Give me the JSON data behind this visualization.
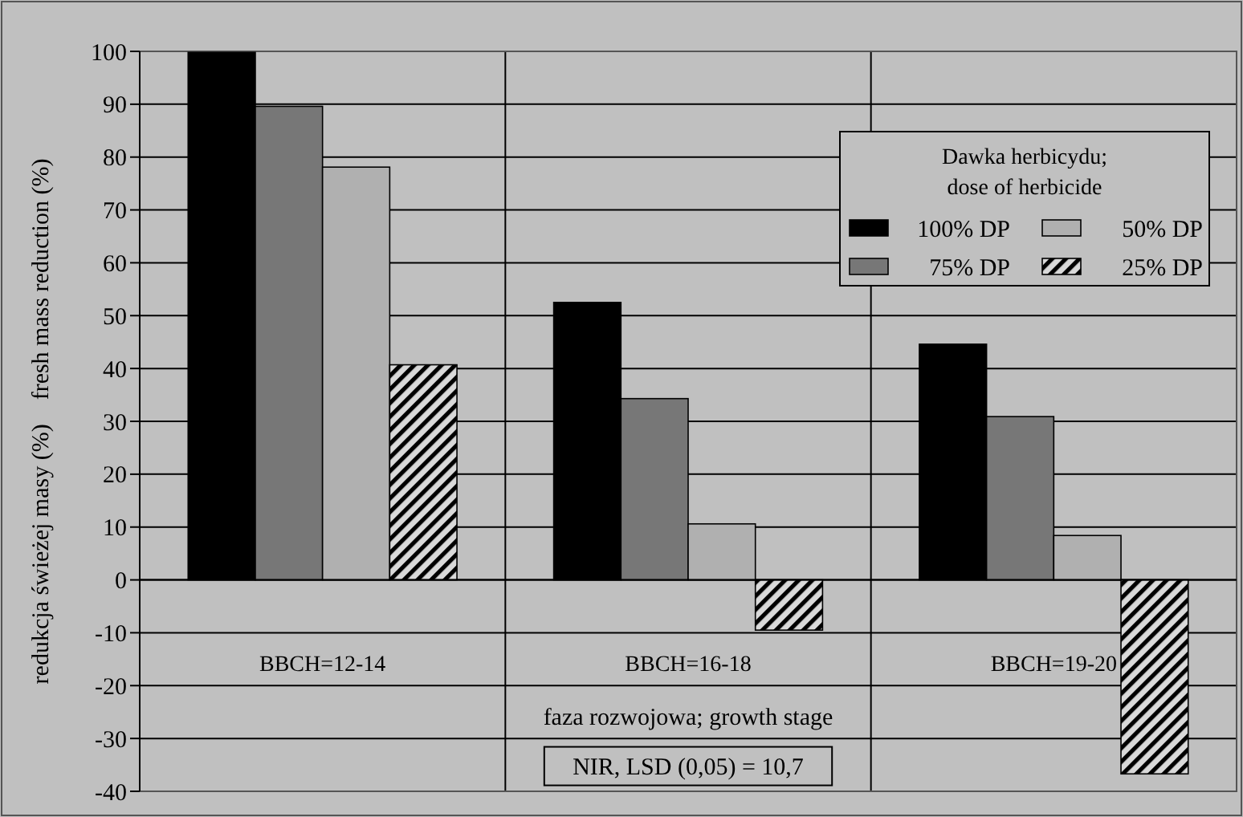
{
  "chart_data": {
    "type": "bar",
    "xlabel": "faza rozwojowa; growth stage",
    "ylabel": "redukcja świeżej masy (%)    fresh mass reduction (%)",
    "legend_title": "Dawka herbicydu;\ndose of herbicide",
    "categories": [
      "BBCH=12-14",
      "BBCH=16-18",
      "BBCH=19-20"
    ],
    "series": [
      {
        "name": "100% DP",
        "color": "#000000",
        "values": [
          99.8,
          52.5,
          44.6
        ]
      },
      {
        "name": "75% DP",
        "color": "#777777",
        "values": [
          89.6,
          34.3,
          30.9
        ]
      },
      {
        "name": "50% DP",
        "color": "#b0b0b0",
        "values": [
          78.1,
          10.6,
          8.4
        ]
      },
      {
        "name": "25% DP",
        "color": "#000000",
        "values": [
          40.7,
          -9.5,
          -36.7
        ]
      }
    ],
    "ylim": [
      -40,
      100
    ],
    "yticks": [
      -40,
      -30,
      -20,
      -10,
      0,
      10,
      20,
      30,
      40,
      50,
      60,
      70,
      80,
      90,
      100
    ],
    "grid": true,
    "legend": "top right",
    "annotations": [
      "NIR, LSD (0,05) = 10,7"
    ]
  }
}
